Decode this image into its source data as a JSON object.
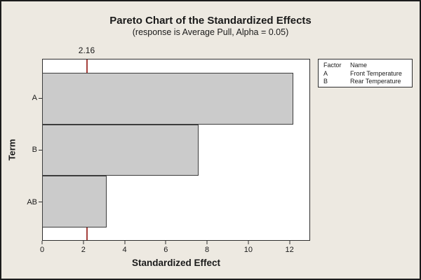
{
  "title": "Pareto Chart of the Standardized Effects",
  "subtitle": "(response is Average Pull, Alpha = 0.05)",
  "chart_data": {
    "type": "bar",
    "orientation": "horizontal",
    "categories": [
      "A",
      "B",
      "AB"
    ],
    "values": [
      12.2,
      7.62,
      3.15
    ],
    "title": "Pareto Chart of the Standardized Effects",
    "subtitle": "(response is Average Pull, Alpha = 0.05)",
    "xlabel": "Standardized Effect",
    "ylabel": "Term",
    "xlim": [
      0,
      13
    ],
    "x_ticks": [
      0,
      2,
      4,
      6,
      8,
      10,
      12
    ],
    "reference_line": 2.16,
    "reference_line_label": "2.16",
    "grid": false,
    "legend_position": "top-right"
  },
  "legend": {
    "headers": [
      "Factor",
      "Name"
    ],
    "rows": [
      {
        "factor": "A",
        "name": "Front Temperature"
      },
      {
        "factor": "B",
        "name": "Rear Temperature"
      }
    ]
  },
  "colors": {
    "background": "#EDE9E1",
    "plot_background": "#FFFFFF",
    "bar_fill": "#CBCBCB",
    "bar_border": "#3C3C3C",
    "reference_line": "#A6413D",
    "text": "#1A1A1A"
  }
}
